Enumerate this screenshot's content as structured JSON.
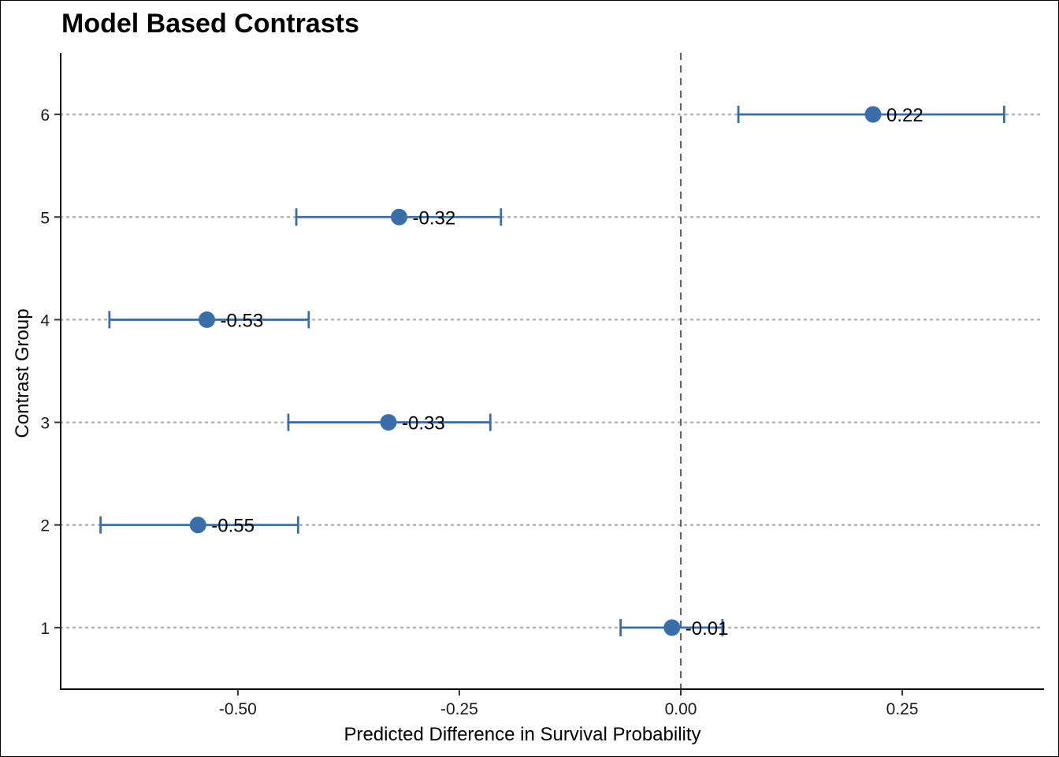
{
  "chart_data": {
    "type": "scatter",
    "title": "Model Based Contrasts",
    "xlabel": "Predicted Difference in Survival Probability",
    "ylabel": "Contrast Group",
    "xlim": [
      -0.7,
      0.41
    ],
    "ylim": [
      0.4,
      6.6
    ],
    "x_ticks": [
      -0.5,
      -0.25,
      0.0,
      0.25
    ],
    "x_tick_labels": [
      "-0.50",
      "-0.25",
      "0.00",
      "0.25"
    ],
    "y_ticks": [
      1,
      2,
      3,
      4,
      5,
      6
    ],
    "y_tick_labels": [
      "1",
      "2",
      "3",
      "4",
      "5",
      "6"
    ],
    "reference_line_x": 0,
    "grid": "horizontal dotted",
    "point_color": "#3a6ea8",
    "points": [
      {
        "group": 1,
        "estimate": -0.01,
        "lower": -0.068,
        "upper": 0.047,
        "label": "-0.01"
      },
      {
        "group": 2,
        "estimate": -0.545,
        "lower": -0.655,
        "upper": -0.432,
        "label": "-0.55"
      },
      {
        "group": 3,
        "estimate": -0.33,
        "lower": -0.443,
        "upper": -0.215,
        "label": "-0.33"
      },
      {
        "group": 4,
        "estimate": -0.535,
        "lower": -0.645,
        "upper": -0.42,
        "label": "-0.53"
      },
      {
        "group": 5,
        "estimate": -0.318,
        "lower": -0.434,
        "upper": -0.203,
        "label": "-0.32"
      },
      {
        "group": 6,
        "estimate": 0.217,
        "lower": 0.065,
        "upper": 0.365,
        "label": "0.22"
      }
    ]
  }
}
